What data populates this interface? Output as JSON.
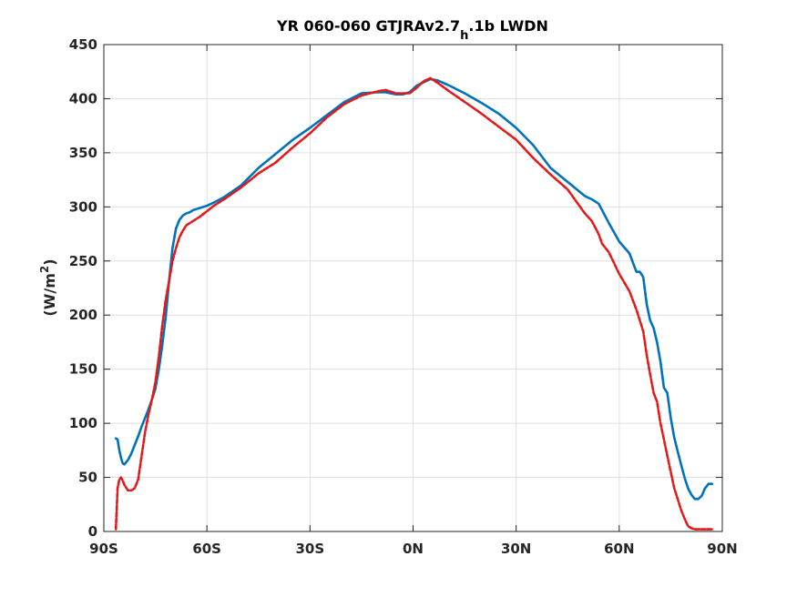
{
  "chart_data": {
    "type": "line",
    "title": {
      "main": "YR 060-060 GTJRAv2.7",
      "subscript": "h",
      "rest": ".1b LWDN"
    },
    "xlabel": "",
    "ylabel": {
      "main": "(W/m",
      "superscript": "2",
      "close": ")"
    },
    "xlim": [
      -90,
      90
    ],
    "ylim": [
      0,
      450
    ],
    "xticks": [
      -90,
      -60,
      -30,
      0,
      30,
      60,
      90
    ],
    "xtick_labels": [
      "90S",
      "60S",
      "30S",
      "0N",
      "30N",
      "60N",
      "90N"
    ],
    "yticks": [
      0,
      50,
      100,
      150,
      200,
      250,
      300,
      350,
      400,
      450
    ],
    "ytick_labels": [
      "0",
      "50",
      "100",
      "150",
      "200",
      "250",
      "300",
      "350",
      "400",
      "450"
    ],
    "grid": true,
    "series": [
      {
        "color": "#0072bd",
        "style": "solid",
        "x": [
          -86.5,
          -86,
          -85.5,
          -85,
          -84.5,
          -84,
          -83,
          -82,
          -81,
          -80,
          -79,
          -78,
          -77,
          -76,
          -75,
          -74,
          -73,
          -72,
          -71,
          -70,
          -69,
          -68,
          -67,
          -66,
          -65,
          -64,
          -63,
          -62,
          -61,
          -60,
          -58,
          -55,
          -50,
          -45,
          -40,
          -35,
          -30,
          -25,
          -20,
          -15,
          -10,
          -8,
          -5,
          -3,
          -1,
          1,
          3,
          5,
          7,
          10,
          15,
          20,
          25,
          30,
          35,
          40,
          45,
          50,
          52,
          54,
          55,
          57,
          60,
          63,
          65,
          66,
          67,
          68,
          69,
          70,
          71,
          72,
          73,
          74,
          75,
          76,
          77,
          78,
          79,
          80,
          81,
          82,
          83,
          84,
          85,
          86,
          87
        ],
        "y": [
          86,
          85,
          75,
          68,
          63,
          62,
          66,
          72,
          80,
          88,
          97,
          105,
          113,
          122,
          132,
          150,
          172,
          198,
          232,
          262,
          280,
          288,
          292,
          294,
          295,
          297,
          298,
          299,
          300,
          301,
          304,
          309,
          320,
          336,
          349,
          362,
          373,
          385,
          397,
          405,
          406,
          406,
          404,
          404,
          406,
          412,
          415,
          418,
          417,
          413,
          405,
          396,
          386,
          373,
          357,
          336,
          323,
          310,
          307,
          303,
          297,
          285,
          268,
          257,
          240,
          240,
          235,
          210,
          195,
          188,
          175,
          157,
          133,
          128,
          105,
          87,
          74,
          62,
          50,
          40,
          34,
          30,
          30,
          33,
          40,
          44,
          44
        ]
      },
      {
        "color": "#e31a1c",
        "style": "dashed",
        "x": [
          -86.5,
          -86,
          -85.5,
          -85,
          -84.5,
          -84,
          -83,
          -82,
          -81,
          -80,
          -79,
          -78,
          -77,
          -76,
          -75,
          -74,
          -73,
          -72,
          -71,
          -70,
          -69,
          -68,
          -67,
          -66,
          -65,
          -64,
          -63,
          -62,
          -60,
          -58,
          -55,
          -50,
          -45,
          -40,
          -35,
          -30,
          -25,
          -20,
          -15,
          -10,
          -8,
          -5,
          -3,
          -1,
          1,
          3,
          5,
          7,
          10,
          15,
          20,
          25,
          30,
          35,
          40,
          45,
          50,
          52,
          54,
          55,
          57,
          60,
          63,
          65,
          66,
          67,
          68,
          69,
          70,
          71,
          72,
          73,
          74,
          75,
          76,
          77,
          78,
          79,
          80,
          81,
          82,
          83,
          84,
          85,
          86,
          87
        ],
        "y": [
          2,
          40,
          48,
          50,
          47,
          43,
          38,
          38,
          40,
          48,
          70,
          92,
          108,
          122,
          138,
          162,
          190,
          214,
          232,
          250,
          262,
          272,
          278,
          283,
          285,
          287,
          289,
          291,
          296,
          301,
          307,
          318,
          331,
          341,
          355,
          368,
          383,
          395,
          403,
          407,
          408,
          405,
          405,
          405,
          410,
          416,
          419,
          415,
          408,
          397,
          386,
          374,
          362,
          345,
          330,
          316,
          294,
          287,
          275,
          266,
          258,
          238,
          222,
          205,
          195,
          185,
          163,
          145,
          128,
          120,
          100,
          85,
          70,
          55,
          40,
          30,
          20,
          12,
          5,
          3,
          2,
          2,
          2,
          2,
          2,
          2
        ]
      }
    ]
  }
}
